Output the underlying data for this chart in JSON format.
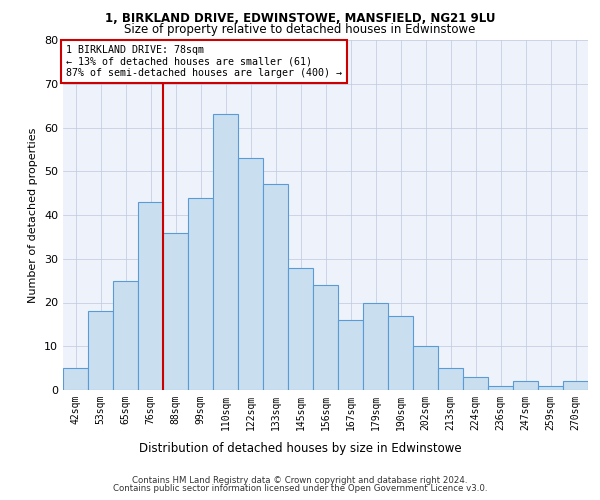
{
  "title1": "1, BIRKLAND DRIVE, EDWINSTOWE, MANSFIELD, NG21 9LU",
  "title2": "Size of property relative to detached houses in Edwinstowe",
  "xlabel": "Distribution of detached houses by size in Edwinstowe",
  "ylabel": "Number of detached properties",
  "categories": [
    "42sqm",
    "53sqm",
    "65sqm",
    "76sqm",
    "88sqm",
    "99sqm",
    "110sqm",
    "122sqm",
    "133sqm",
    "145sqm",
    "156sqm",
    "167sqm",
    "179sqm",
    "190sqm",
    "202sqm",
    "213sqm",
    "224sqm",
    "236sqm",
    "247sqm",
    "259sqm",
    "270sqm"
  ],
  "values": [
    5,
    18,
    25,
    43,
    36,
    44,
    63,
    53,
    47,
    28,
    24,
    16,
    20,
    17,
    10,
    5,
    3,
    1,
    2,
    1,
    2
  ],
  "bar_color": "#c9dff0",
  "bar_edge_color": "#5b9bd5",
  "property_line_x": 3.5,
  "vline_color": "#cc0000",
  "annotation_box_edge": "#cc0000",
  "annotation_text1": "1 BIRKLAND DRIVE: 78sqm",
  "annotation_text2": "← 13% of detached houses are smaller (61)",
  "annotation_text3": "87% of semi-detached houses are larger (400) →",
  "footer1": "Contains HM Land Registry data © Crown copyright and database right 2024.",
  "footer2": "Contains public sector information licensed under the Open Government Licence v3.0.",
  "ylim": [
    0,
    80
  ],
  "yticks": [
    0,
    10,
    20,
    30,
    40,
    50,
    60,
    70,
    80
  ],
  "background_color": "#eef2fb",
  "grid_color": "#c0c8e0"
}
